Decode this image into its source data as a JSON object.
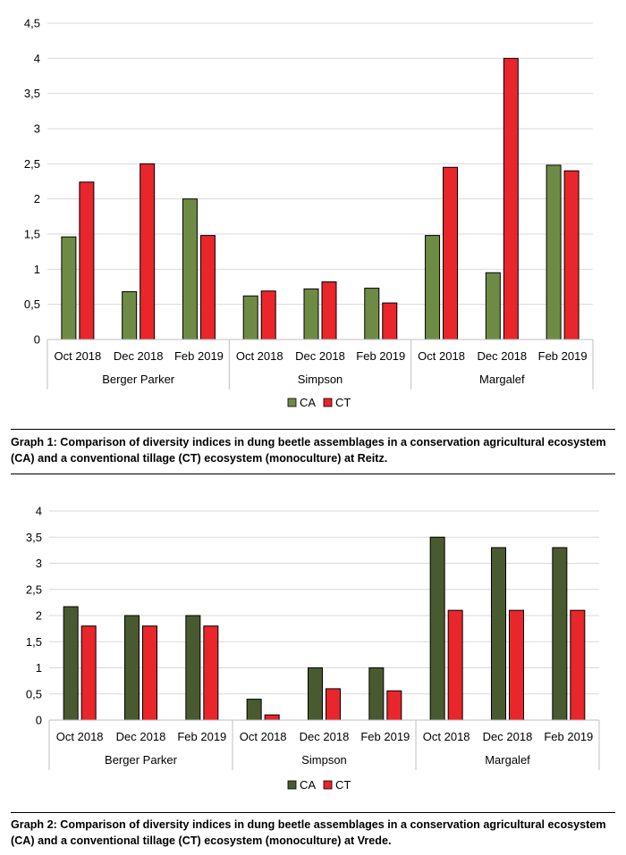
{
  "colors": {
    "ct": "#e8262b",
    "ca1": "#6e8b45",
    "ca2": "#4a5a30",
    "grid": "#d9d9d9",
    "axis": "#bfbfbf"
  },
  "legend": {
    "ca": "CA",
    "ct": "CT"
  },
  "captions": {
    "graph1": "Graph 1: Comparison of diversity indices in dung beetle assemblages in a conservation agricultural ecosystem (CA) and a conventional tillage (CT) ecosystem (monoculture) at Reitz.",
    "graph2": "Graph 2: Comparison of diversity indices in dung beetle assemblages in a conservation agricultural ecosystem (CA) and a conventional tillage (CT) ecosystem (monoculture) at Vrede."
  },
  "chart_data": [
    {
      "type": "bar",
      "title": "",
      "xlabel": "",
      "ylabel": "",
      "ylim": [
        0,
        4.5
      ],
      "yticks": [
        "0",
        "0,5",
        "1",
        "1,5",
        "2",
        "2,5",
        "3",
        "3,5",
        "4",
        "4,5"
      ],
      "groups": [
        "Berger Parker",
        "Simpson",
        "Margalef"
      ],
      "categories": [
        "Oct 2018",
        "Dec 2018",
        "Feb 2019",
        "Oct 2018",
        "Dec 2018",
        "Feb 2019",
        "Oct 2018",
        "Dec 2018",
        "Feb 2019"
      ],
      "series": [
        {
          "name": "CA",
          "values": [
            1.46,
            0.68,
            2.0,
            0.62,
            0.72,
            0.73,
            1.48,
            0.95,
            2.48
          ]
        },
        {
          "name": "CT",
          "values": [
            2.24,
            2.5,
            1.48,
            0.69,
            0.82,
            0.52,
            2.45,
            4.0,
            2.4
          ]
        }
      ],
      "grid": true,
      "legend_position": "bottom"
    },
    {
      "type": "bar",
      "title": "",
      "xlabel": "",
      "ylabel": "",
      "ylim": [
        0,
        4
      ],
      "yticks": [
        "0",
        "0,5",
        "1",
        "1,5",
        "2",
        "2,5",
        "3",
        "3,5",
        "4"
      ],
      "groups": [
        "Berger Parker",
        "Simpson",
        "Margalef"
      ],
      "categories": [
        "Oct 2018",
        "Dec 2018",
        "Feb 2019",
        "Oct 2018",
        "Dec 2018",
        "Feb 2019",
        "Oct 2018",
        "Dec 2018",
        "Feb 2019"
      ],
      "series": [
        {
          "name": "CA",
          "values": [
            2.17,
            2.0,
            2.0,
            0.4,
            1.0,
            1.0,
            3.5,
            3.3,
            3.3
          ]
        },
        {
          "name": "CT",
          "values": [
            1.8,
            1.8,
            1.8,
            0.1,
            0.6,
            0.56,
            2.1,
            2.1,
            2.1
          ]
        }
      ],
      "grid": true,
      "legend_position": "bottom"
    }
  ]
}
